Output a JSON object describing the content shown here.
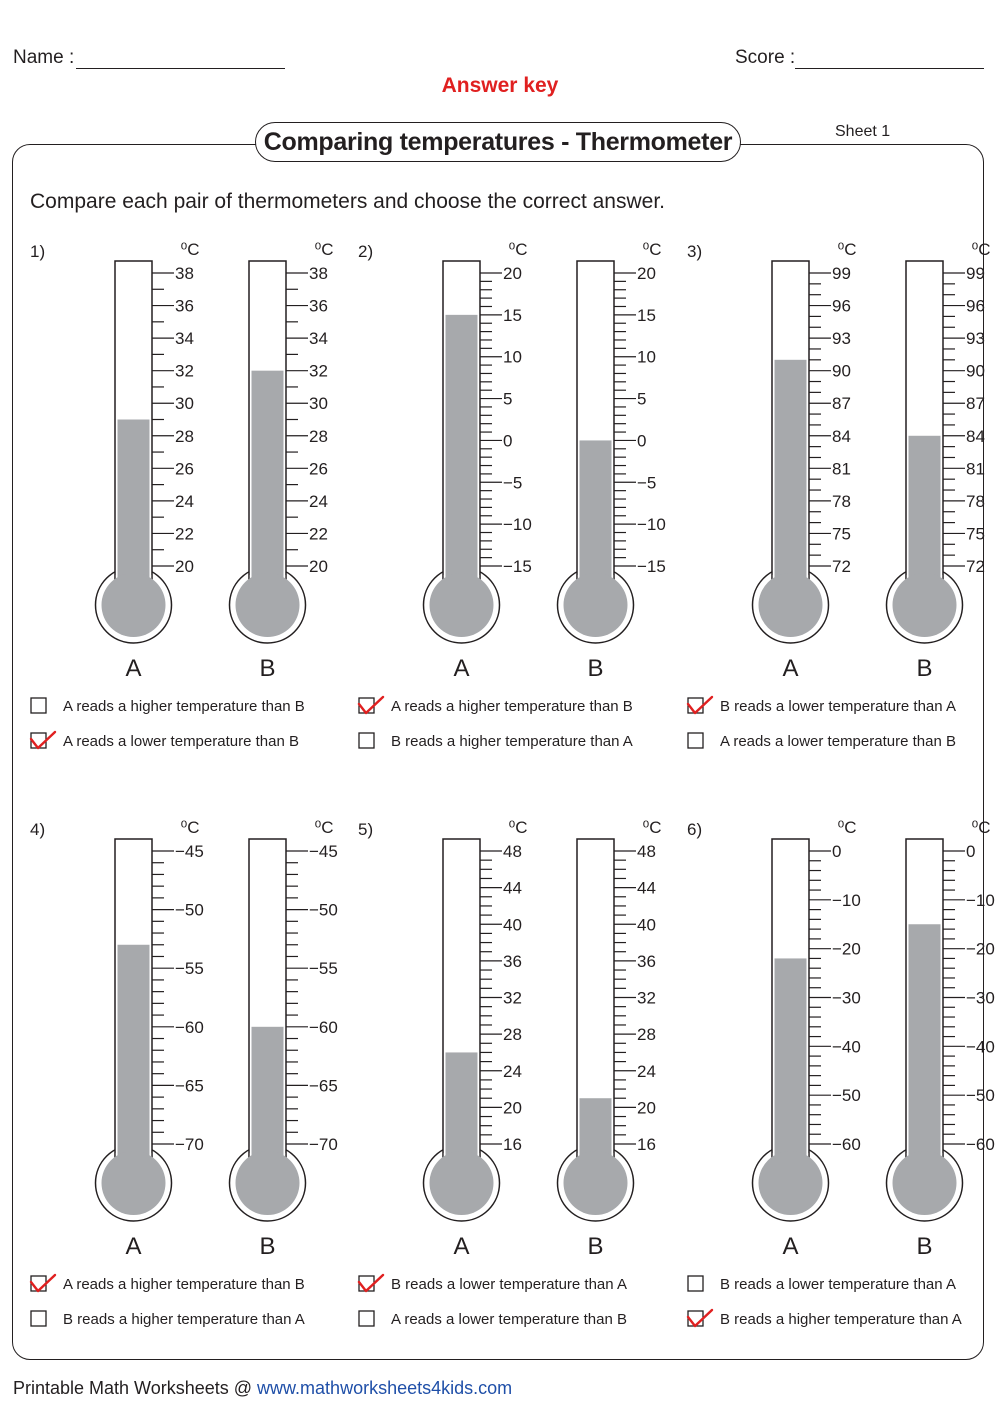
{
  "header": {
    "name_label": "Name :",
    "score_label": "Score :",
    "answer_key": "Answer key",
    "title": "Comparing temperatures - Thermometer",
    "sheet": "Sheet 1"
  },
  "instruction": "Compare each pair of thermometers and choose the correct answer.",
  "unit": "⁰C",
  "colors": {
    "fill": "#a7a9ac",
    "outline": "#231f20",
    "check": "#e02020",
    "link": "#1f4fa8"
  },
  "problems": [
    {
      "number": "1)",
      "scale": {
        "labels": [
          "38",
          "36",
          "34",
          "32",
          "30",
          "28",
          "26",
          "24",
          "22",
          "20"
        ],
        "top": 38,
        "bottom": 20,
        "minor_per_major": 2
      },
      "thermometers": [
        {
          "label": "A",
          "reading": 29
        },
        {
          "label": "B",
          "reading": 32
        }
      ],
      "options": [
        {
          "text": "A reads a higher temperature than B",
          "checked": false
        },
        {
          "text": "A reads a lower temperature than B",
          "checked": true
        }
      ]
    },
    {
      "number": "2)",
      "scale": {
        "labels": [
          "20",
          "15",
          "10",
          "5",
          "0",
          "−5",
          "−10",
          "−15"
        ],
        "top": 20,
        "bottom": -15,
        "minor_per_major": 5
      },
      "thermometers": [
        {
          "label": "A",
          "reading": 15
        },
        {
          "label": "B",
          "reading": 0
        }
      ],
      "options": [
        {
          "text": "A reads a higher temperature than B",
          "checked": true
        },
        {
          "text": "B reads a higher temperature than A",
          "checked": false
        }
      ]
    },
    {
      "number": "3)",
      "scale": {
        "labels": [
          "99",
          "96",
          "93",
          "90",
          "87",
          "84",
          "81",
          "78",
          "75",
          "72"
        ],
        "top": 99,
        "bottom": 72,
        "minor_per_major": 3
      },
      "thermometers": [
        {
          "label": "A",
          "reading": 91
        },
        {
          "label": "B",
          "reading": 84
        }
      ],
      "options": [
        {
          "text": "B reads a lower temperature than A",
          "checked": true
        },
        {
          "text": "A reads a lower temperature than B",
          "checked": false
        }
      ]
    },
    {
      "number": "4)",
      "scale": {
        "labels": [
          "−45",
          "−50",
          "−55",
          "−60",
          "−65",
          "−70"
        ],
        "top": -45,
        "bottom": -70,
        "minor_per_major": 5
      },
      "thermometers": [
        {
          "label": "A",
          "reading": -53
        },
        {
          "label": "B",
          "reading": -60
        }
      ],
      "options": [
        {
          "text": "A reads a higher temperature than B",
          "checked": true
        },
        {
          "text": "B reads a higher temperature than A",
          "checked": false
        }
      ]
    },
    {
      "number": "5)",
      "scale": {
        "labels": [
          "48",
          "44",
          "40",
          "36",
          "32",
          "28",
          "24",
          "20",
          "16"
        ],
        "top": 48,
        "bottom": 16,
        "minor_per_major": 4
      },
      "thermometers": [
        {
          "label": "A",
          "reading": 26
        },
        {
          "label": "B",
          "reading": 21
        }
      ],
      "options": [
        {
          "text": "B reads a lower temperature than A",
          "checked": true
        },
        {
          "text": "A reads a lower temperature than B",
          "checked": false
        }
      ]
    },
    {
      "number": "6)",
      "scale": {
        "labels": [
          "0",
          "−10",
          "−20",
          "−30",
          "−40",
          "−50",
          "−60"
        ],
        "top": 0,
        "bottom": -60,
        "minor_per_major": 5
      },
      "thermometers": [
        {
          "label": "A",
          "reading": -22
        },
        {
          "label": "B",
          "reading": -15
        }
      ],
      "options": [
        {
          "text": "B reads a lower temperature than A",
          "checked": false
        },
        {
          "text": "B reads a higher temperature than A",
          "checked": true
        }
      ]
    }
  ],
  "footer": {
    "prefix": "Printable Math Worksheets @ ",
    "url": "www.mathworksheets4kids.com"
  }
}
